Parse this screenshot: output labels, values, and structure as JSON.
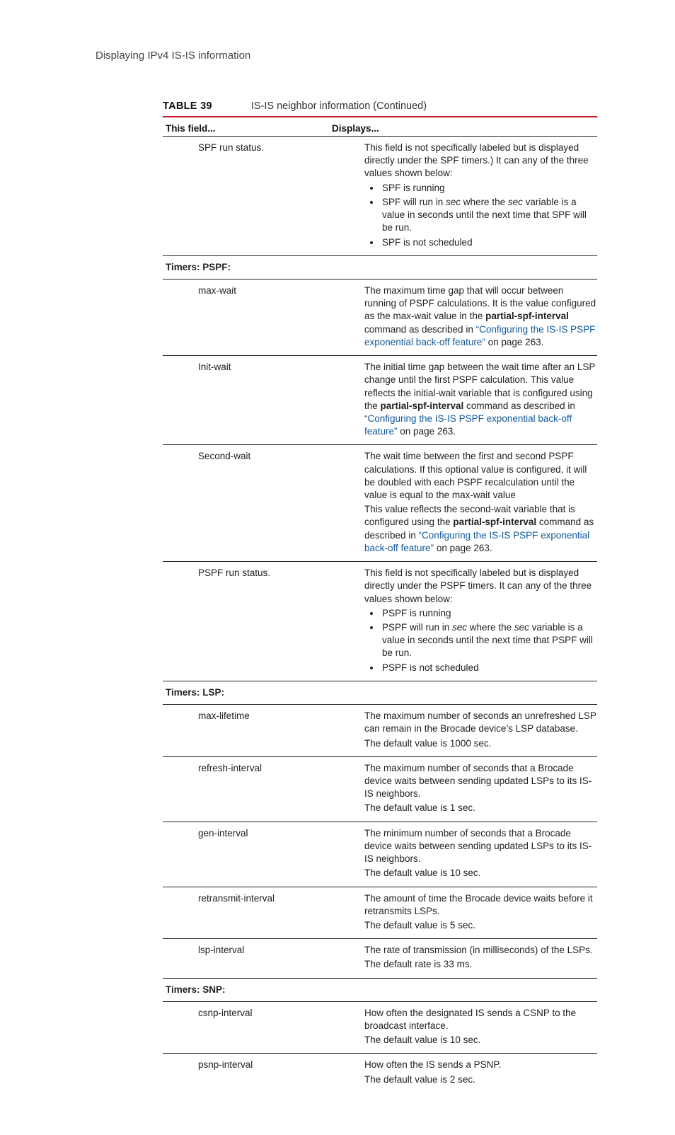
{
  "breadcrumb": "Displaying IPv4 IS-IS information",
  "table": {
    "label": "TABLE 39",
    "caption": "IS-IS neighbor information  (Continued)",
    "header_left": "This field...",
    "header_right": "Displays...",
    "rows": [
      {
        "field": "SPF run status.",
        "desc_html": "<p>This field is not specifically labeled but is displayed directly under the SPF timers.) It can any of the three values shown below:</p><ul class=\"bullets\"><li>SPF is running</li><li>SPF will run in <span class=\"it\">sec</span> where the <span class=\"it\">sec</span> variable is a value in seconds until the next time that SPF will be run.</li><li>SPF is not scheduled</li></ul>"
      },
      {
        "section": "Timers: PSPF:"
      },
      {
        "field": "max-wait",
        "desc_html": "<p>The maximum time gap that will occur between running of PSPF calculations. It is the value configured as the max-wait value in the <span class=\"b\">partial-spf-interval</span> command as described in <span class=\"link\">“Configuring the IS-IS PSPF exponential back-off feature”</span> on page 263.</p>"
      },
      {
        "field": "Init-wait",
        "desc_html": "<p>The initial time gap between  the wait time after an LSP change until the first PSPF calculation.  This value reflects the initial-wait variable that is configured using the <span class=\"b\">partial-spf-interval</span> command as described in <span class=\"link\">“Configuring the IS-IS PSPF exponential back-off feature”</span> on page 263.</p>"
      },
      {
        "field": "Second-wait",
        "desc_html": "<p>The wait time between the first and second PSPF calculations.  If this optional value is configured, it will be doubled with each PSPF recalculation until the value is equal to the max-wait value</p><p>This value reflects the second-wait variable that is configured using the <span class=\"b\">partial-spf-interval</span> command as described in <span class=\"link\">“Configuring the IS-IS PSPF exponential back-off feature”</span> on page 263.</p>"
      },
      {
        "field": "PSPF run status.",
        "desc_html": "<p>This field is not specifically labeled but is displayed directly under the PSPF timers. It can any of the three values shown below:</p><ul class=\"bullets\"><li>PSPF is running</li><li>PSPF will run in <span class=\"it\">sec</span> where the <span class=\"it\">sec</span> variable is a value in seconds until the next time that PSPF will be run.</li><li>PSPF is not scheduled</li></ul>"
      },
      {
        "section": "Timers: LSP:"
      },
      {
        "field": "max-lifetime",
        "desc_html": "<p>The maximum number of seconds an unrefreshed LSP can remain in the Brocade device’s LSP database.</p><p>The default value is 1000 sec.</p>"
      },
      {
        "field": "refresh-interval",
        "desc_html": "<p>The maximum number of seconds that a Brocade device waits between sending updated LSPs to its IS-IS neighbors.</p><p>The default value is 1 sec.</p>"
      },
      {
        "field": "gen-interval",
        "desc_html": "<p>The minimum number of seconds that a Brocade device waits between sending updated LSPs to its IS-IS neighbors.</p><p>The default value is 10 sec.</p>"
      },
      {
        "field": "retransmit-interval",
        "desc_html": "<p>The amount of time the Brocade device waits before it retransmits LSPs.</p><p>The default value is 5 sec.</p>"
      },
      {
        "field": "lsp-interval",
        "desc_html": "<p>The rate of transmission (in milliseconds) of the LSPs.</p><p>The default rate is 33 ms.</p>"
      },
      {
        "section": "Timers: SNP:"
      },
      {
        "field": "csnp-interval",
        "desc_html": "<p>How often the designated IS sends a CSNP to the broadcast interface.</p><p>The default value is 10 sec.</p>"
      },
      {
        "field": "psnp-interval",
        "last": true,
        "desc_html": "<p>How often the IS sends a PSNP.</p><p>The default value is 2 sec.</p>"
      }
    ]
  }
}
